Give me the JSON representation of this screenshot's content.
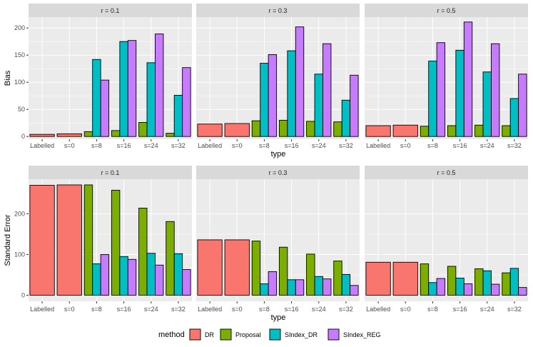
{
  "chart_data": {
    "type": "bar",
    "categories": [
      "Labelled",
      "s=0",
      "s=8",
      "s=16",
      "s=24",
      "s=32"
    ],
    "xlabel": "type",
    "legend": {
      "title": "method",
      "position": "bottom",
      "entries": [
        {
          "name": "DR",
          "color": "#F8766D"
        },
        {
          "name": "Proposal",
          "color": "#7CAE00"
        },
        {
          "name": "SIndex_DR",
          "color": "#00BFC4"
        },
        {
          "name": "SIndex_REG",
          "color": "#C77CFF"
        }
      ]
    },
    "facets": [
      {
        "label": "r = 0.1"
      },
      {
        "label": "r = 0.3"
      },
      {
        "label": "r = 0.5"
      }
    ],
    "rows": [
      {
        "ylabel": "Bias",
        "ylim": [
          -5,
          220
        ],
        "yticks": [
          0,
          50,
          100,
          150,
          200
        ],
        "panels": [
          {
            "series": [
              {
                "name": "DR",
                "values": [
                  4,
                  5,
                  null,
                  null,
                  null,
                  null
                ]
              },
              {
                "name": "Proposal",
                "values": [
                  null,
                  null,
                  9,
                  11,
                  26,
                  6
                ]
              },
              {
                "name": "SIndex_DR",
                "values": [
                  null,
                  null,
                  142,
                  175,
                  136,
                  76
                ]
              },
              {
                "name": "SIndex_REG",
                "values": [
                  null,
                  null,
                  104,
                  177,
                  189,
                  127
                ]
              }
            ]
          },
          {
            "series": [
              {
                "name": "DR",
                "values": [
                  23,
                  24,
                  null,
                  null,
                  null,
                  null
                ]
              },
              {
                "name": "Proposal",
                "values": [
                  null,
                  null,
                  29,
                  30,
                  28,
                  27
                ]
              },
              {
                "name": "SIndex_DR",
                "values": [
                  null,
                  null,
                  135,
                  158,
                  115,
                  67
                ]
              },
              {
                "name": "SIndex_REG",
                "values": [
                  null,
                  null,
                  151,
                  202,
                  171,
                  113
                ]
              }
            ]
          },
          {
            "series": [
              {
                "name": "DR",
                "values": [
                  20,
                  21,
                  null,
                  null,
                  null,
                  null
                ]
              },
              {
                "name": "Proposal",
                "values": [
                  null,
                  null,
                  19,
                  20,
                  21,
                  20
                ]
              },
              {
                "name": "SIndex_DR",
                "values": [
                  null,
                  null,
                  139,
                  159,
                  119,
                  70
                ]
              },
              {
                "name": "SIndex_REG",
                "values": [
                  null,
                  null,
                  173,
                  211,
                  171,
                  115
                ]
              }
            ]
          }
        ]
      },
      {
        "ylabel": "Standard Error",
        "ylim": [
          -15,
          285
        ],
        "yticks": [
          0,
          100,
          200
        ],
        "panels": [
          {
            "series": [
              {
                "name": "DR",
                "values": [
                  270,
                  271,
                  null,
                  null,
                  null,
                  null
                ]
              },
              {
                "name": "Proposal",
                "values": [
                  null,
                  null,
                  271,
                  258,
                  214,
                  181
                ]
              },
              {
                "name": "SIndex_DR",
                "values": [
                  null,
                  null,
                  77,
                  95,
                  103,
                  102
                ]
              },
              {
                "name": "SIndex_REG",
                "values": [
                  null,
                  null,
                  100,
                  88,
                  74,
                  63
                ]
              }
            ]
          },
          {
            "series": [
              {
                "name": "DR",
                "values": [
                  136,
                  136,
                  null,
                  null,
                  null,
                  null
                ]
              },
              {
                "name": "Proposal",
                "values": [
                  null,
                  null,
                  133,
                  118,
                  101,
                  84
                ]
              },
              {
                "name": "SIndex_DR",
                "values": [
                  null,
                  null,
                  28,
                  38,
                  46,
                  51
                ]
              },
              {
                "name": "SIndex_REG",
                "values": [
                  null,
                  null,
                  58,
                  38,
                  40,
                  24
                ]
              }
            ]
          },
          {
            "series": [
              {
                "name": "DR",
                "values": [
                  81,
                  81,
                  null,
                  null,
                  null,
                  null
                ]
              },
              {
                "name": "Proposal",
                "values": [
                  null,
                  null,
                  77,
                  71,
                  65,
                  55
                ]
              },
              {
                "name": "SIndex_DR",
                "values": [
                  null,
                  null,
                  31,
                  42,
                  60,
                  66
                ]
              },
              {
                "name": "SIndex_REG",
                "values": [
                  null,
                  null,
                  41,
                  28,
                  27,
                  19
                ]
              }
            ]
          }
        ]
      }
    ]
  }
}
